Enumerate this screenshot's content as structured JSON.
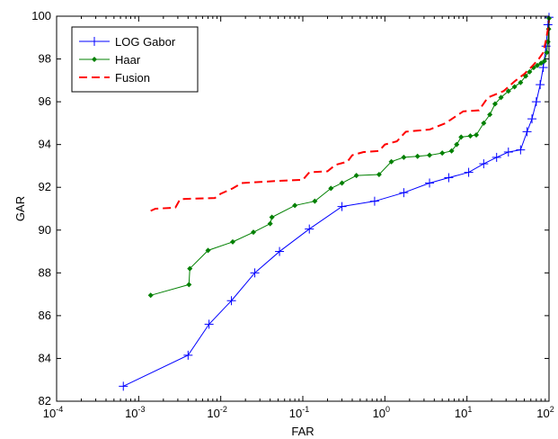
{
  "chart_data": {
    "type": "line",
    "title": "",
    "xlabel": "FAR",
    "ylabel": "GAR",
    "x_scale": "log",
    "xlim": [
      0.0001,
      100
    ],
    "ylim": [
      82,
      100
    ],
    "x_ticks": [
      {
        "base": "10",
        "exp": "-4",
        "value": 0.0001
      },
      {
        "base": "10",
        "exp": "-3",
        "value": 0.001
      },
      {
        "base": "10",
        "exp": "-2",
        "value": 0.01
      },
      {
        "base": "10",
        "exp": "-1",
        "value": 0.1
      },
      {
        "base": "10",
        "exp": "0",
        "value": 1
      },
      {
        "base": "10",
        "exp": "1",
        "value": 10
      },
      {
        "base": "10",
        "exp": "2",
        "value": 100
      }
    ],
    "y_ticks": [
      "82",
      "84",
      "86",
      "88",
      "90",
      "92",
      "94",
      "96",
      "98",
      "100"
    ],
    "grid": false,
    "legend": {
      "position": "top-left"
    },
    "series": [
      {
        "name": "LOG Gabor",
        "color": "#0000ff",
        "style": "solid",
        "marker": "plus",
        "points": [
          [
            0.00065,
            82.7
          ],
          [
            0.004,
            84.15
          ],
          [
            0.0072,
            85.6
          ],
          [
            0.0135,
            86.7
          ],
          [
            0.026,
            88.0
          ],
          [
            0.052,
            89.0
          ],
          [
            0.12,
            90.05
          ],
          [
            0.3,
            91.1
          ],
          [
            0.75,
            91.35
          ],
          [
            1.7,
            91.75
          ],
          [
            3.5,
            92.2
          ],
          [
            6.0,
            92.45
          ],
          [
            10.5,
            92.7
          ],
          [
            16,
            93.1
          ],
          [
            23,
            93.4
          ],
          [
            32,
            93.65
          ],
          [
            45,
            93.75
          ],
          [
            54,
            94.6
          ],
          [
            62,
            95.2
          ],
          [
            70,
            96.0
          ],
          [
            78,
            96.8
          ],
          [
            85,
            97.6
          ],
          [
            92,
            98.6
          ],
          [
            97,
            99.6
          ],
          [
            100,
            99.95
          ]
        ]
      },
      {
        "name": "Haar",
        "color": "#008000",
        "style": "solid",
        "marker": "dot",
        "points": [
          [
            0.0014,
            86.95
          ],
          [
            0.0041,
            87.45
          ],
          [
            0.0042,
            88.2
          ],
          [
            0.007,
            89.05
          ],
          [
            0.014,
            89.45
          ],
          [
            0.025,
            89.9
          ],
          [
            0.04,
            90.3
          ],
          [
            0.042,
            90.6
          ],
          [
            0.08,
            91.15
          ],
          [
            0.14,
            91.35
          ],
          [
            0.22,
            91.95
          ],
          [
            0.3,
            92.2
          ],
          [
            0.45,
            92.55
          ],
          [
            0.85,
            92.6
          ],
          [
            1.2,
            93.2
          ],
          [
            1.7,
            93.4
          ],
          [
            2.5,
            93.45
          ],
          [
            3.5,
            93.5
          ],
          [
            5.0,
            93.6
          ],
          [
            6.5,
            93.7
          ],
          [
            7.5,
            94.0
          ],
          [
            8.5,
            94.35
          ],
          [
            11,
            94.4
          ],
          [
            13,
            94.45
          ],
          [
            16,
            95.0
          ],
          [
            19,
            95.4
          ],
          [
            22,
            95.9
          ],
          [
            26,
            96.2
          ],
          [
            32,
            96.5
          ],
          [
            38,
            96.7
          ],
          [
            45,
            96.9
          ],
          [
            52,
            97.2
          ],
          [
            58,
            97.4
          ],
          [
            65,
            97.6
          ],
          [
            72,
            97.7
          ],
          [
            80,
            97.8
          ],
          [
            88,
            97.9
          ],
          [
            94,
            98.3
          ],
          [
            97,
            98.8
          ],
          [
            99,
            99.4
          ],
          [
            100,
            99.9
          ]
        ]
      },
      {
        "name": "Fusion",
        "color": "#ff0000",
        "style": "dashed",
        "marker": "none",
        "points": [
          [
            0.0014,
            90.9
          ],
          [
            0.0016,
            91.0
          ],
          [
            0.0028,
            91.05
          ],
          [
            0.0032,
            91.45
          ],
          [
            0.0085,
            91.5
          ],
          [
            0.01,
            91.7
          ],
          [
            0.014,
            91.95
          ],
          [
            0.018,
            92.2
          ],
          [
            0.05,
            92.3
          ],
          [
            0.1,
            92.35
          ],
          [
            0.12,
            92.7
          ],
          [
            0.2,
            92.75
          ],
          [
            0.25,
            93.05
          ],
          [
            0.35,
            93.2
          ],
          [
            0.4,
            93.5
          ],
          [
            0.55,
            93.65
          ],
          [
            0.85,
            93.7
          ],
          [
            1.0,
            94.0
          ],
          [
            1.4,
            94.15
          ],
          [
            1.8,
            94.6
          ],
          [
            3.5,
            94.7
          ],
          [
            5.5,
            95.0
          ],
          [
            9,
            95.55
          ],
          [
            14,
            95.6
          ],
          [
            18,
            96.2
          ],
          [
            28,
            96.5
          ],
          [
            38,
            96.95
          ],
          [
            50,
            97.3
          ],
          [
            62,
            97.65
          ],
          [
            75,
            98.0
          ],
          [
            85,
            98.3
          ],
          [
            92,
            98.9
          ],
          [
            97,
            99.4
          ],
          [
            100,
            99.8
          ]
        ]
      }
    ]
  }
}
